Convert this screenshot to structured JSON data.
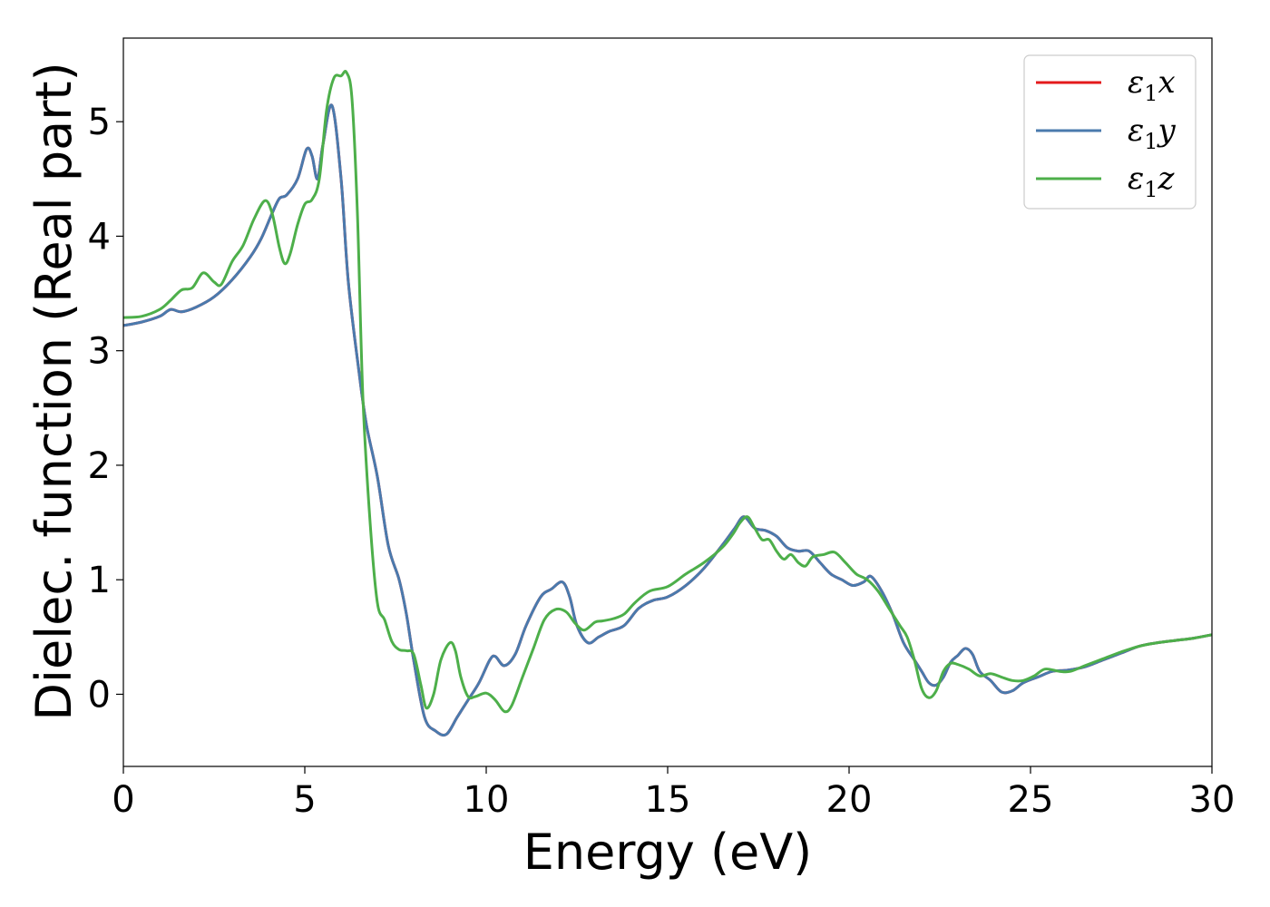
{
  "chart_data": {
    "type": "line",
    "title": "",
    "xlabel": "Energy (eV)",
    "ylabel": "Dielec. function (Real part)",
    "xlim": [
      0,
      30
    ],
    "ylim": [
      -0.63,
      5.73
    ],
    "xticks": [
      0,
      5,
      10,
      15,
      20,
      25,
      30
    ],
    "yticks": [
      0,
      1,
      2,
      3,
      4,
      5
    ],
    "grid": false,
    "legend_position": "top-right",
    "series": [
      {
        "name": "ε₁x",
        "legend_base": "ε",
        "legend_sub": "1",
        "legend_var": "x",
        "color": "#e41a1c",
        "x": [
          0,
          0.5,
          1.0,
          1.3,
          1.6,
          2.0,
          2.5,
          3.0,
          3.5,
          3.8,
          4.1,
          4.3,
          4.5,
          4.8,
          5.05,
          5.2,
          5.35,
          5.5,
          5.75,
          6.0,
          6.2,
          6.5,
          6.7,
          7.0,
          7.3,
          7.6,
          7.8,
          8.0,
          8.3,
          8.6,
          8.9,
          9.2,
          9.5,
          9.8,
          10.1,
          10.25,
          10.5,
          10.8,
          11.1,
          11.5,
          11.8,
          12.1,
          12.3,
          12.5,
          12.8,
          13.1,
          13.4,
          13.8,
          14.2,
          14.6,
          15.0,
          15.5,
          16.0,
          16.5,
          16.85,
          17.1,
          17.4,
          17.7,
          18.0,
          18.3,
          18.6,
          18.9,
          19.2,
          19.5,
          19.8,
          20.1,
          20.4,
          20.6,
          20.9,
          21.2,
          21.5,
          21.8,
          22.0,
          22.2,
          22.4,
          22.6,
          22.8,
          23.0,
          23.2,
          23.4,
          23.6,
          23.9,
          24.2,
          24.5,
          24.8,
          25.2,
          25.6,
          26.0,
          26.5,
          27.0,
          27.5,
          28.0,
          28.5,
          29.0,
          29.5,
          30.0
        ],
        "y": [
          3.22,
          3.25,
          3.3,
          3.36,
          3.34,
          3.38,
          3.47,
          3.62,
          3.82,
          3.98,
          4.2,
          4.33,
          4.36,
          4.5,
          4.76,
          4.7,
          4.5,
          4.8,
          5.14,
          4.5,
          3.6,
          2.8,
          2.35,
          1.9,
          1.3,
          1.0,
          0.7,
          0.3,
          -0.2,
          -0.32,
          -0.35,
          -0.2,
          -0.05,
          0.1,
          0.3,
          0.33,
          0.25,
          0.35,
          0.6,
          0.85,
          0.92,
          0.98,
          0.85,
          0.6,
          0.45,
          0.5,
          0.55,
          0.6,
          0.75,
          0.82,
          0.85,
          0.95,
          1.1,
          1.3,
          1.45,
          1.55,
          1.45,
          1.43,
          1.38,
          1.28,
          1.25,
          1.25,
          1.15,
          1.05,
          1.0,
          0.95,
          0.98,
          1.03,
          0.9,
          0.7,
          0.45,
          0.3,
          0.2,
          0.1,
          0.08,
          0.15,
          0.28,
          0.34,
          0.4,
          0.35,
          0.2,
          0.12,
          0.02,
          0.03,
          0.1,
          0.15,
          0.2,
          0.21,
          0.24,
          0.3,
          0.36,
          0.42,
          0.45,
          0.47,
          0.49,
          0.52
        ]
      },
      {
        "name": "ε₁y",
        "legend_base": "ε",
        "legend_sub": "1",
        "legend_var": "y",
        "color": "#4a7aad",
        "x": [
          0,
          0.5,
          1.0,
          1.3,
          1.6,
          2.0,
          2.5,
          3.0,
          3.5,
          3.8,
          4.1,
          4.3,
          4.5,
          4.8,
          5.05,
          5.2,
          5.35,
          5.5,
          5.75,
          6.0,
          6.2,
          6.5,
          6.7,
          7.0,
          7.3,
          7.6,
          7.8,
          8.0,
          8.3,
          8.6,
          8.9,
          9.2,
          9.5,
          9.8,
          10.1,
          10.25,
          10.5,
          10.8,
          11.1,
          11.5,
          11.8,
          12.1,
          12.3,
          12.5,
          12.8,
          13.1,
          13.4,
          13.8,
          14.2,
          14.6,
          15.0,
          15.5,
          16.0,
          16.5,
          16.85,
          17.1,
          17.4,
          17.7,
          18.0,
          18.3,
          18.6,
          18.9,
          19.2,
          19.5,
          19.8,
          20.1,
          20.4,
          20.6,
          20.9,
          21.2,
          21.5,
          21.8,
          22.0,
          22.2,
          22.4,
          22.6,
          22.8,
          23.0,
          23.2,
          23.4,
          23.6,
          23.9,
          24.2,
          24.5,
          24.8,
          25.2,
          25.6,
          26.0,
          26.5,
          27.0,
          27.5,
          28.0,
          28.5,
          29.0,
          29.5,
          30.0
        ],
        "y": [
          3.22,
          3.25,
          3.3,
          3.36,
          3.34,
          3.38,
          3.47,
          3.62,
          3.82,
          3.98,
          4.2,
          4.33,
          4.36,
          4.5,
          4.76,
          4.7,
          4.5,
          4.8,
          5.14,
          4.5,
          3.6,
          2.8,
          2.35,
          1.9,
          1.3,
          1.0,
          0.7,
          0.3,
          -0.2,
          -0.32,
          -0.35,
          -0.2,
          -0.05,
          0.1,
          0.3,
          0.33,
          0.25,
          0.35,
          0.6,
          0.85,
          0.92,
          0.98,
          0.85,
          0.6,
          0.45,
          0.5,
          0.55,
          0.6,
          0.75,
          0.82,
          0.85,
          0.95,
          1.1,
          1.3,
          1.45,
          1.55,
          1.45,
          1.43,
          1.38,
          1.28,
          1.25,
          1.25,
          1.15,
          1.05,
          1.0,
          0.95,
          0.98,
          1.03,
          0.9,
          0.7,
          0.45,
          0.3,
          0.2,
          0.1,
          0.08,
          0.15,
          0.28,
          0.34,
          0.4,
          0.35,
          0.2,
          0.12,
          0.02,
          0.03,
          0.1,
          0.15,
          0.2,
          0.21,
          0.24,
          0.3,
          0.36,
          0.42,
          0.45,
          0.47,
          0.49,
          0.52
        ]
      },
      {
        "name": "ε₁z",
        "legend_base": "ε",
        "legend_sub": "1",
        "legend_var": "z",
        "color": "#4daf4a",
        "x": [
          0,
          0.5,
          1.0,
          1.3,
          1.6,
          1.9,
          2.2,
          2.5,
          2.7,
          3.0,
          3.3,
          3.6,
          3.9,
          4.1,
          4.3,
          4.45,
          4.6,
          4.8,
          5.0,
          5.2,
          5.4,
          5.6,
          5.8,
          6.0,
          6.15,
          6.3,
          6.45,
          6.6,
          6.8,
          7.0,
          7.2,
          7.4,
          7.6,
          7.8,
          8.0,
          8.2,
          8.35,
          8.55,
          8.75,
          9.0,
          9.15,
          9.3,
          9.5,
          9.7,
          10.0,
          10.25,
          10.5,
          10.7,
          11.0,
          11.3,
          11.6,
          11.9,
          12.2,
          12.45,
          12.7,
          13.0,
          13.2,
          13.5,
          13.8,
          14.1,
          14.5,
          15.0,
          15.5,
          16.0,
          16.5,
          16.8,
          17.0,
          17.2,
          17.4,
          17.6,
          17.8,
          18.0,
          18.2,
          18.4,
          18.6,
          18.8,
          19.0,
          19.3,
          19.6,
          19.9,
          20.2,
          20.5,
          20.8,
          21.1,
          21.4,
          21.6,
          21.8,
          22.0,
          22.2,
          22.4,
          22.6,
          22.8,
          23.0,
          23.3,
          23.6,
          23.9,
          24.2,
          24.5,
          24.8,
          25.1,
          25.4,
          25.8,
          26.1,
          26.5,
          27.0,
          27.5,
          28.0,
          28.5,
          29.0,
          29.5,
          30.0
        ],
        "y": [
          3.29,
          3.3,
          3.36,
          3.44,
          3.53,
          3.55,
          3.68,
          3.6,
          3.58,
          3.78,
          3.92,
          4.15,
          4.31,
          4.2,
          3.9,
          3.76,
          3.85,
          4.1,
          4.28,
          4.32,
          4.5,
          5.1,
          5.38,
          5.4,
          5.43,
          5.2,
          4.2,
          2.6,
          1.5,
          0.8,
          0.65,
          0.46,
          0.39,
          0.38,
          0.35,
          0.08,
          -0.12,
          0.0,
          0.3,
          0.45,
          0.38,
          0.15,
          -0.02,
          -0.02,
          0.01,
          -0.05,
          -0.15,
          -0.1,
          0.15,
          0.4,
          0.65,
          0.74,
          0.72,
          0.62,
          0.56,
          0.63,
          0.64,
          0.66,
          0.7,
          0.8,
          0.9,
          0.94,
          1.05,
          1.15,
          1.28,
          1.4,
          1.5,
          1.55,
          1.45,
          1.35,
          1.35,
          1.25,
          1.18,
          1.22,
          1.15,
          1.12,
          1.2,
          1.22,
          1.24,
          1.15,
          1.05,
          1.0,
          0.9,
          0.75,
          0.6,
          0.5,
          0.3,
          0.05,
          -0.03,
          0.03,
          0.2,
          0.27,
          0.26,
          0.22,
          0.16,
          0.18,
          0.15,
          0.12,
          0.12,
          0.16,
          0.22,
          0.2,
          0.2,
          0.25,
          0.31,
          0.37,
          0.42,
          0.45,
          0.47,
          0.49,
          0.52
        ]
      }
    ]
  }
}
